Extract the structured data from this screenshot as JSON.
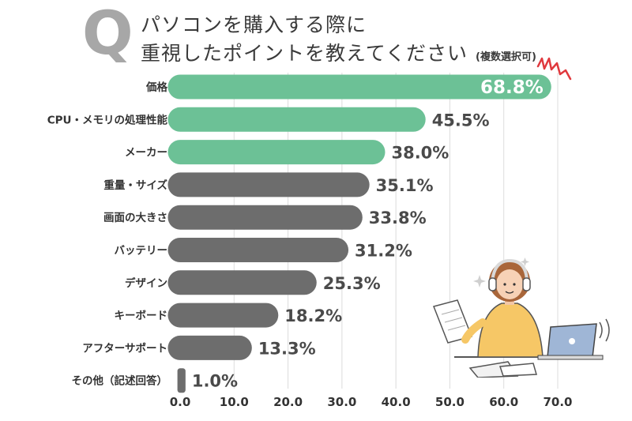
{
  "header": {
    "q_letter": "Q",
    "title_line1": "パソコンを購入する際に",
    "title_line2": "重視したポイントを教えてください",
    "title_note": "(複数選択可)"
  },
  "chart_data": {
    "type": "bar",
    "orientation": "horizontal",
    "categories": [
      "価格",
      "CPU・メモリの処理性能",
      "メーカー",
      "重量・サイズ",
      "画面の大きさ",
      "バッテリー",
      "デザイン",
      "キーボード",
      "アフターサポート",
      "その他（記述回答）"
    ],
    "values": [
      68.8,
      45.5,
      38.0,
      35.1,
      33.8,
      31.2,
      25.3,
      18.2,
      13.3,
      1.0
    ],
    "value_labels": [
      "68.8%",
      "45.5%",
      "38.0%",
      "35.1%",
      "33.8%",
      "31.2%",
      "25.3%",
      "18.2%",
      "13.3%",
      "1.0%"
    ],
    "xlim": [
      0,
      70
    ],
    "x_ticks": [
      "0.0",
      "10.0",
      "20.0",
      "30.0",
      "40.0",
      "50.0",
      "60.0",
      "70.0"
    ],
    "grid": "vertical",
    "highlight_count": 3,
    "colors": {
      "highlight": "#6cc196",
      "normal": "#6d6d6d",
      "grid": "#dcdcdc",
      "label": "#333333",
      "value_label": "#4a4a4a",
      "value_label_inside": "#ffffff",
      "accent_mark": "#e0393e"
    }
  }
}
